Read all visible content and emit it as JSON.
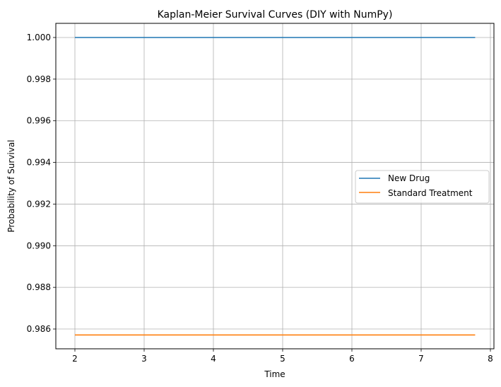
{
  "chart_data": {
    "type": "line",
    "title": "Kaplan-Meier Survival Curves (DIY with NumPy)",
    "xlabel": "Time",
    "ylabel": "Probability of Survival",
    "xlim": [
      1.75,
      8.07
    ],
    "ylim": [
      0.985,
      1.00068
    ],
    "xticks": [
      2,
      3,
      4,
      5,
      6,
      7,
      8
    ],
    "xtick_labels": [
      "2",
      "3",
      "4",
      "5",
      "6",
      "7",
      "8"
    ],
    "yticks": [
      0.986,
      0.988,
      0.99,
      0.992,
      0.994,
      0.996,
      0.998,
      1.0
    ],
    "ytick_labels": [
      "0.986",
      "0.988",
      "0.990",
      "0.992",
      "0.994",
      "0.996",
      "0.998",
      "1.000"
    ],
    "grid": true,
    "legend_position": "center right",
    "series": [
      {
        "name": "New Drug",
        "color": "#1f77b4",
        "x": [
          2.0,
          7.78
        ],
        "y": [
          1.0,
          1.0
        ]
      },
      {
        "name": "Standard Treatment",
        "color": "#ff7f0e",
        "x": [
          2.0,
          7.78
        ],
        "y": [
          0.985714,
          0.985714
        ]
      }
    ]
  },
  "legend": {
    "items": [
      {
        "label": "New Drug",
        "color": "#1f77b4"
      },
      {
        "label": "Standard Treatment",
        "color": "#ff7f0e"
      }
    ]
  }
}
